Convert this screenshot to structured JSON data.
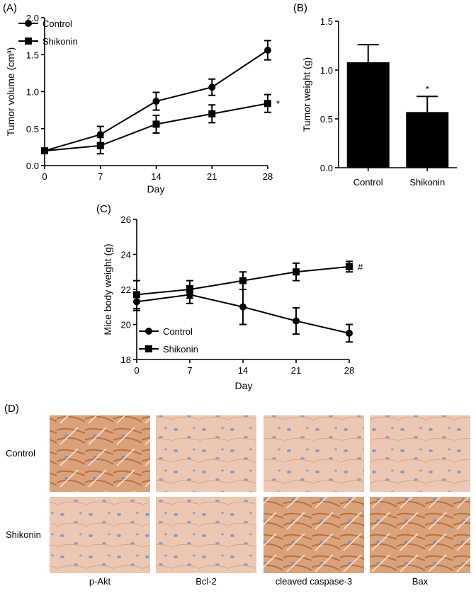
{
  "chart_data": [
    {
      "type": "line",
      "panel_label": "(A)",
      "x_label": "Day",
      "y_label": "Tumor volume (cm³)",
      "x": [
        0,
        7,
        14,
        21,
        28
      ],
      "xlim": [
        0,
        28
      ],
      "xticks": [
        0,
        7,
        14,
        21,
        28
      ],
      "ylim": [
        0,
        2
      ],
      "yticks": [
        {
          "value": 0,
          "label": "0.0"
        },
        0.5,
        {
          "value": 1,
          "label": "1.0"
        },
        1.5,
        {
          "value": 2,
          "label": "2.0"
        }
      ],
      "legend": "upper left",
      "annotation": "*",
      "series": [
        {
          "name": "Control",
          "color": "#000000",
          "marker": "circle",
          "values": [
            0.2,
            0.42,
            0.87,
            1.06,
            1.56
          ],
          "errors": [
            0,
            0.11,
            0.12,
            0.11,
            0.13
          ]
        },
        {
          "name": "Shikonin",
          "color": "#000000",
          "marker": "square",
          "values": [
            0.2,
            0.27,
            0.56,
            0.7,
            0.84
          ],
          "errors": [
            0,
            0.11,
            0.12,
            0.12,
            0.12
          ]
        }
      ]
    },
    {
      "type": "bar",
      "panel_label": "(B)",
      "y_label": "Tumor weight (g)",
      "categories": [
        "Control",
        "Shikonin"
      ],
      "values": [
        1.08,
        0.57
      ],
      "errors": [
        0.18,
        0.16
      ],
      "color": "#000000",
      "ylim": [
        0,
        1.5
      ],
      "yticks": [
        {
          "value": 0,
          "label": "0.0"
        },
        0.5,
        {
          "value": 1,
          "label": "1.0"
        },
        1.5
      ],
      "annotation": "*"
    },
    {
      "type": "line",
      "panel_label": "(C)",
      "x_label": "Day",
      "y_label": "Mice body weight (g)",
      "x": [
        0,
        7,
        14,
        21,
        28
      ],
      "xlim": [
        0,
        28
      ],
      "xticks": [
        0,
        7,
        14,
        21,
        28
      ],
      "ylim": [
        18,
        26
      ],
      "yticks": [
        18,
        20,
        22,
        24,
        26
      ],
      "legend": "lower left",
      "annotation": "#",
      "series": [
        {
          "name": "Control",
          "color": "#000000",
          "marker": "circle",
          "values": [
            21.3,
            21.7,
            21.0,
            20.2,
            19.5
          ],
          "errors": [
            0.5,
            0.5,
            1.0,
            0.75,
            0.5
          ]
        },
        {
          "name": "Shikonin",
          "color": "#000000",
          "marker": "square",
          "values": [
            21.7,
            22.0,
            22.5,
            23.0,
            23.3
          ],
          "errors": [
            0.8,
            0.5,
            0.5,
            0.5,
            0.3
          ]
        }
      ]
    }
  ],
  "panel_d": {
    "panel_label": "(D)",
    "rows": [
      "Control",
      "Shikonin"
    ],
    "columns": [
      "p-Akt",
      "Bcl-2",
      "cleaved caspase-3",
      "Bax"
    ]
  }
}
